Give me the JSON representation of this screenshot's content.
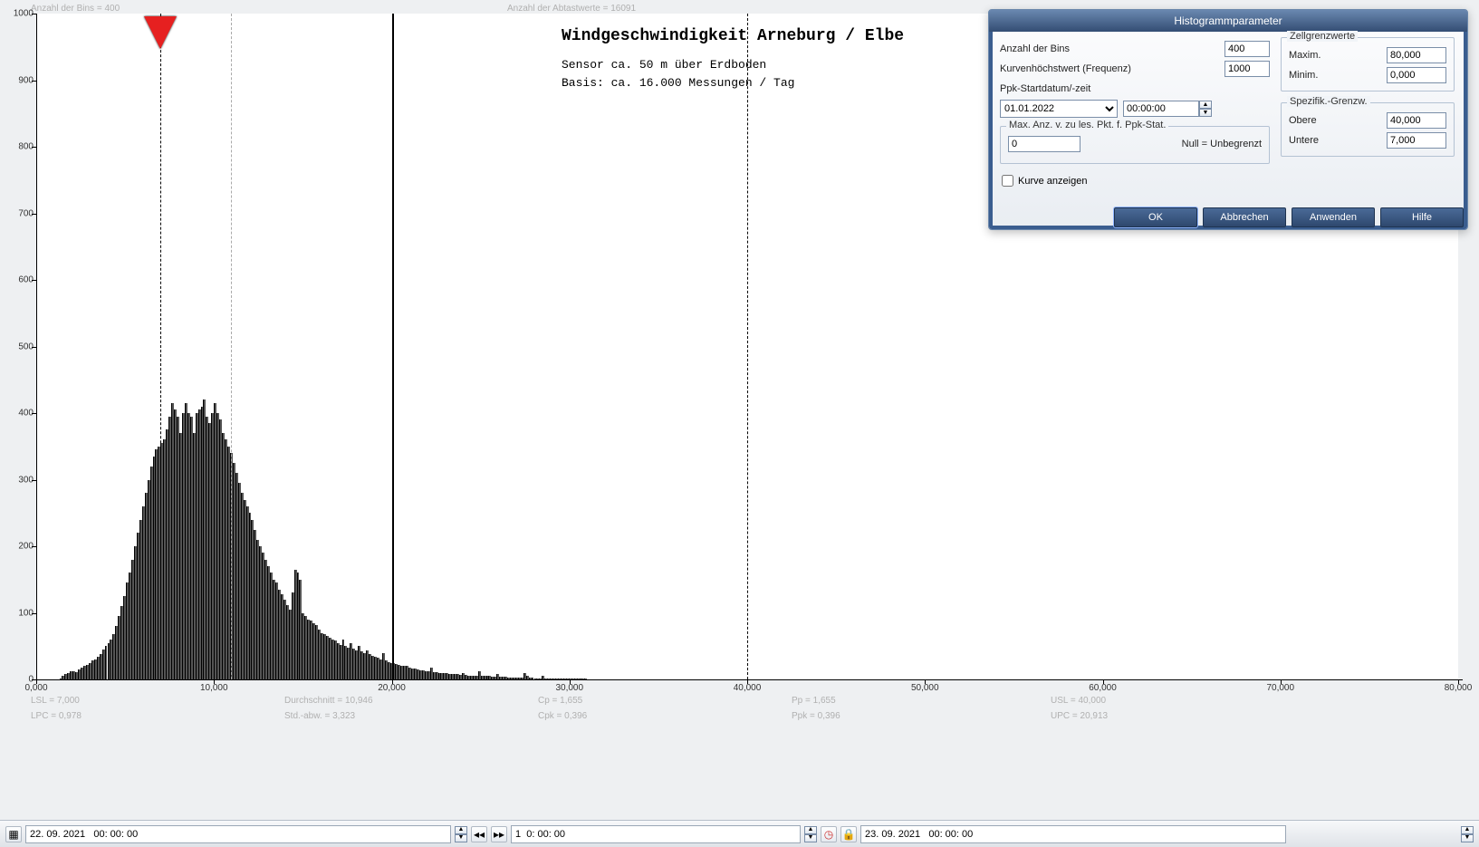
{
  "chart": {
    "type": "histogram",
    "title": "Windgeschwindigkeit  Arneburg / Elbe",
    "subtitle1": "Sensor ca. 50 m über Erdboden",
    "subtitle2": "Basis: ca. 16.000 Messungen / Tag",
    "background_color": "#eef0f2",
    "plot_background": "#ffffff",
    "bar_color": "#555555",
    "bar_border": "#000000",
    "xlim": [
      0,
      80
    ],
    "ylim": [
      0,
      1000
    ],
    "xtick_step": 10,
    "ytick_step": 100,
    "xticks": [
      "0,000",
      "10,000",
      "20,000",
      "30,000",
      "40,000",
      "50,000",
      "60,000",
      "70,000",
      "80,000"
    ],
    "yticks": [
      "0",
      "100",
      "200",
      "300",
      "400",
      "500",
      "600",
      "700",
      "800",
      "900",
      "1000"
    ],
    "lsl": 7.0,
    "usl": 40.0,
    "target_line": 20.0,
    "mean_line_label": "▼",
    "histogram": [
      0,
      0,
      2,
      5,
      8,
      10,
      12,
      12,
      11,
      15,
      18,
      20,
      22,
      24,
      28,
      30,
      34,
      38,
      45,
      50,
      55,
      60,
      68,
      80,
      95,
      110,
      125,
      145,
      160,
      180,
      200,
      220,
      240,
      260,
      280,
      300,
      320,
      335,
      345,
      350,
      355,
      360,
      375,
      395,
      415,
      405,
      395,
      370,
      400,
      415,
      400,
      395,
      370,
      400,
      405,
      410,
      420,
      395,
      385,
      400,
      415,
      400,
      390,
      370,
      360,
      350,
      340,
      325,
      310,
      295,
      280,
      270,
      260,
      250,
      240,
      225,
      210,
      200,
      190,
      180,
      170,
      160,
      150,
      145,
      135,
      128,
      120,
      112,
      105,
      130,
      165,
      160,
      150,
      100,
      95,
      90,
      88,
      85,
      82,
      75,
      70,
      68,
      65,
      62,
      60,
      58,
      55,
      52,
      60,
      50,
      48,
      55,
      46,
      44,
      50,
      42,
      40,
      44,
      38,
      36,
      34,
      32,
      30,
      40,
      28,
      26,
      25,
      24,
      23,
      22,
      21,
      20,
      20,
      18,
      17,
      16,
      15,
      14,
      13,
      12,
      12,
      18,
      11,
      11,
      10,
      10,
      9,
      9,
      8,
      8,
      8,
      8,
      7,
      10,
      7,
      6,
      6,
      6,
      6,
      12,
      5,
      5,
      5,
      5,
      4,
      4,
      8,
      4,
      4,
      4,
      3,
      3,
      3,
      3,
      3,
      3,
      10,
      5,
      3,
      3,
      2,
      2,
      2,
      6,
      2,
      2,
      2,
      2,
      2,
      2,
      2,
      2,
      2,
      2,
      2,
      2,
      2,
      2,
      2,
      2
    ],
    "n_bins_drawn": 200,
    "x_start": 1.0,
    "x_step": 0.15
  },
  "top_info": {
    "left_label": "Anzahl der Bins =",
    "left_value": "400",
    "right_label": "Anzahl der Abtastwerte =",
    "right_value": "16091"
  },
  "stats": {
    "lsl": "LSL = 7,000",
    "lpc": "LPC = 0,978",
    "mean": "Durchschnitt  = 10,946",
    "std": "Std.-abw. = 3,323",
    "cp": "Cp  = 1,655",
    "cpk": "Cpk = 0,396",
    "pp": "Pp  = 1,655",
    "ppk": "Ppk = 0,396",
    "usl": "USL = 40,000",
    "upc": "UPC = 20,913"
  },
  "dialog": {
    "title": "Histogrammparameter",
    "bins_label": "Anzahl der Bins",
    "bins_value": "400",
    "peak_label": "Kurvenhöchstwert (Frequenz)",
    "peak_value": "1000",
    "ppk_label": "Ppk-Startdatum/-zeit",
    "date_value": "01.01.2022",
    "time_value": "00:00:00",
    "maxpts_legend": "Max. Anz. v. zu les. Pkt. f. Ppk-Stat.",
    "maxpts_value": "0",
    "maxpts_hint": "Null = Unbegrenzt",
    "show_curve_label": "Kurve anzeigen",
    "cell_legend": "Zellgrenzwerte",
    "cell_max_label": "Maxim.",
    "cell_max_value": "80,000",
    "cell_min_label": "Minim.",
    "cell_min_value": "0,000",
    "spec_legend": "Spezifik.-Grenzw.",
    "spec_up_label": "Obere",
    "spec_up_value": "40,000",
    "spec_lo_label": "Untere",
    "spec_lo_value": "7,000",
    "btn_ok": "OK",
    "btn_cancel": "Abbrechen",
    "btn_apply": "Anwenden",
    "btn_help": "Hilfe"
  },
  "toolbar": {
    "from": "22. 09. 2021   00: 00: 00",
    "span": "1  0: 00: 00",
    "to": "23. 09. 2021   00: 00: 00"
  }
}
